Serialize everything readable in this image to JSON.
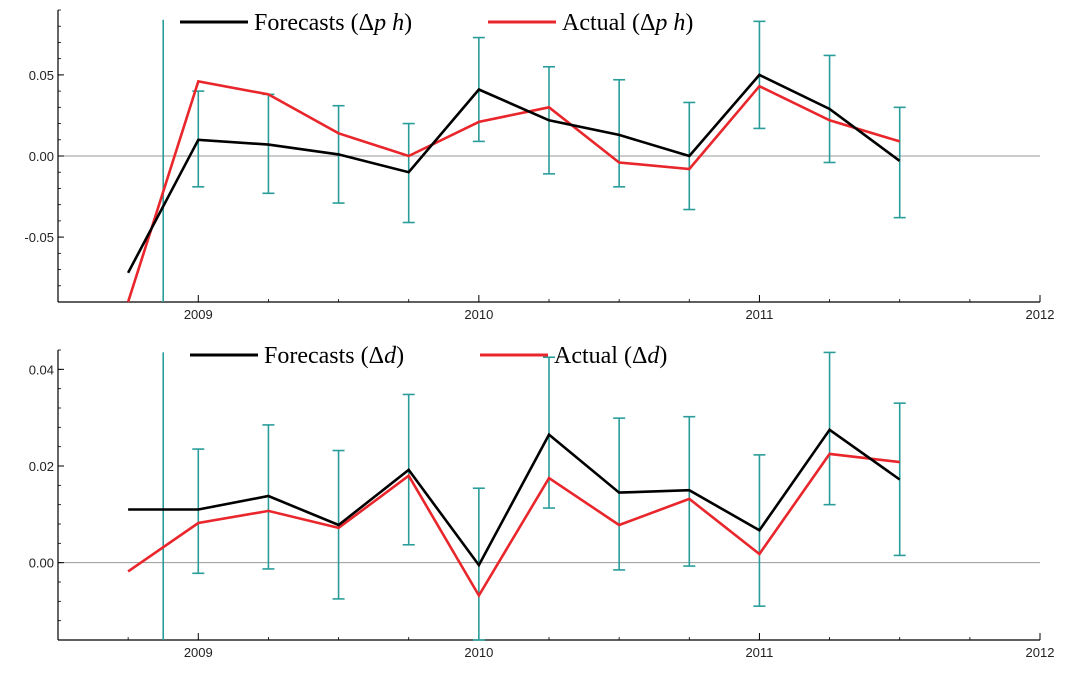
{
  "chart_data": [
    {
      "type": "line",
      "x": [
        2008.75,
        2009.0,
        2009.25,
        2009.5,
        2009.75,
        2010.0,
        2010.25,
        2010.5,
        2010.75,
        2011.0,
        2011.25,
        2011.5
      ],
      "xlim": [
        2008.5,
        2012.0
      ],
      "ylim": [
        -0.09,
        0.09
      ],
      "xticks": [
        2009,
        2010,
        2011,
        2012
      ],
      "xtick_labels": [
        "2009",
        "2010",
        "2011",
        "2012"
      ],
      "yticks": [
        -0.05,
        0.0,
        0.05
      ],
      "ytick_labels": [
        "-0.05",
        "0.00",
        "0.05"
      ],
      "grid": false,
      "legend_position": "top",
      "series": [
        {
          "name": "Forecasts (Δp h)",
          "legend_main": "Forecasts (Δ",
          "legend_italic": "p h",
          "legend_end": ")",
          "color": "#000000",
          "values": [
            -0.072,
            0.01,
            0.007,
            0.001,
            -0.01,
            0.041,
            0.022,
            0.013,
            0.0,
            0.05,
            0.029,
            -0.003
          ]
        },
        {
          "name": "Actual (Δp h)",
          "legend_main": "Actual (Δ",
          "legend_italic": "p h",
          "legend_end": ")",
          "color": "#e8262b",
          "values": [
            -0.09,
            0.046,
            0.038,
            0.014,
            0.0,
            0.021,
            0.03,
            -0.004,
            -0.008,
            0.043,
            0.022,
            0.009
          ]
        }
      ],
      "error_bars": {
        "color": "#2a9d9a",
        "x": [
          2008.875,
          2009.0,
          2009.25,
          2009.5,
          2009.75,
          2010.0,
          2010.25,
          2010.5,
          2010.75,
          2011.0,
          2011.25,
          2011.5
        ],
        "low": [
          -0.09,
          -0.019,
          -0.023,
          -0.029,
          -0.041,
          0.009,
          -0.011,
          -0.019,
          -0.033,
          0.017,
          -0.004,
          -0.038
        ],
        "high": [
          0.084,
          0.04,
          0.038,
          0.031,
          0.02,
          0.073,
          0.055,
          0.047,
          0.033,
          0.083,
          0.062,
          0.03
        ]
      }
    },
    {
      "type": "line",
      "x": [
        2008.75,
        2009.0,
        2009.25,
        2009.5,
        2009.75,
        2010.0,
        2010.25,
        2010.5,
        2010.75,
        2011.0,
        2011.25,
        2011.5
      ],
      "xlim": [
        2008.5,
        2012.0
      ],
      "ylim": [
        -0.016,
        0.044
      ],
      "xticks": [
        2009,
        2010,
        2011,
        2012
      ],
      "xtick_labels": [
        "2009",
        "2010",
        "2011",
        "2012"
      ],
      "yticks": [
        0.0,
        0.02,
        0.04
      ],
      "ytick_labels": [
        "0.00",
        "0.02",
        "0.04"
      ],
      "grid": false,
      "legend_position": "top",
      "series": [
        {
          "name": "Forecasts (Δd)",
          "legend_main": "Forecasts (Δ",
          "legend_italic": "d",
          "legend_end": ")",
          "color": "#000000",
          "values": [
            0.011,
            0.011,
            0.0138,
            0.0078,
            0.0192,
            -0.0005,
            0.0265,
            0.0145,
            0.015,
            0.0067,
            0.0275,
            0.0172
          ]
        },
        {
          "name": "Actual (Δd)",
          "legend_main": "Actual (Δ",
          "legend_italic": "d",
          "legend_end": ")",
          "color": "#e8262b",
          "values": [
            -0.0018,
            0.0082,
            0.0107,
            0.0072,
            0.018,
            -0.0068,
            0.0175,
            0.0078,
            0.0132,
            0.0018,
            0.0225,
            0.0208
          ]
        }
      ],
      "error_bars": {
        "color": "#2a9d9a",
        "x": [
          2008.875,
          2009.0,
          2009.25,
          2009.5,
          2009.75,
          2010.0,
          2010.25,
          2010.5,
          2010.75,
          2011.0,
          2011.25,
          2011.5
        ],
        "low": [
          -0.016,
          -0.0022,
          -0.0013,
          -0.0075,
          0.0037,
          -0.016,
          0.0113,
          -0.0015,
          -0.0007,
          -0.009,
          0.012,
          0.0015
        ],
        "high": [
          0.0435,
          0.0235,
          0.0285,
          0.0232,
          0.0348,
          0.0154,
          0.0425,
          0.0299,
          0.0302,
          0.0223,
          0.0435,
          0.033
        ]
      }
    }
  ]
}
